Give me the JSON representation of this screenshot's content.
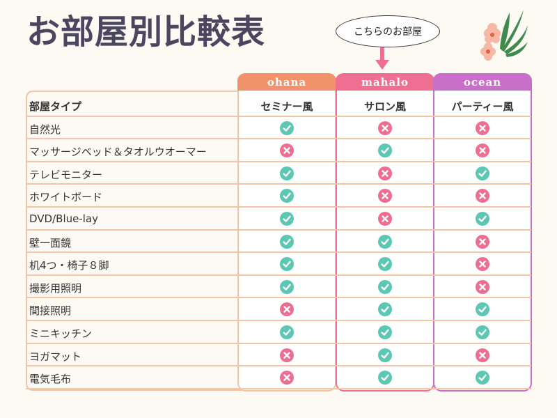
{
  "title": "お部屋別比較表",
  "callout": "こちらのお部屋",
  "columns": [
    {
      "tab": "ohana",
      "type": "セミナー風",
      "color": "#f2926a",
      "border": "#f3c4a6"
    },
    {
      "tab": "mahalo",
      "type": "サロン風",
      "color": "#ef6f93",
      "border": "#ef6f93"
    },
    {
      "tab": "ocean",
      "type": "パーティー風",
      "color": "#c96fc9",
      "border": "#c96fc9"
    }
  ],
  "header_label": "部屋タイプ",
  "rows": [
    {
      "label": "自然光",
      "values": [
        true,
        false,
        false
      ]
    },
    {
      "label": "マッサージベッド＆タオルウオーマー",
      "values": [
        false,
        true,
        false
      ]
    },
    {
      "label": "テレビモニター",
      "values": [
        true,
        false,
        true
      ]
    },
    {
      "label": "ホワイトボード",
      "values": [
        true,
        false,
        false
      ]
    },
    {
      "label": "DVD/Blue-lay",
      "values": [
        true,
        false,
        true
      ]
    },
    {
      "label": "壁一面鏡",
      "values": [
        true,
        true,
        false
      ]
    },
    {
      "label": "机4つ・椅子８脚",
      "values": [
        true,
        true,
        false
      ]
    },
    {
      "label": "撮影用照明",
      "values": [
        true,
        true,
        false
      ]
    },
    {
      "label": "間接照明",
      "values": [
        false,
        true,
        true
      ]
    },
    {
      "label": "ミニキッチン",
      "values": [
        true,
        true,
        true
      ]
    },
    {
      "label": "ヨガマット",
      "values": [
        false,
        true,
        false
      ]
    },
    {
      "label": "電気毛布",
      "values": [
        false,
        true,
        true
      ]
    }
  ],
  "icons": {
    "yes": "check-circle-icon",
    "no": "x-circle-icon",
    "yes_color": "#5cc7b2",
    "no_color": "#ec6f93"
  }
}
